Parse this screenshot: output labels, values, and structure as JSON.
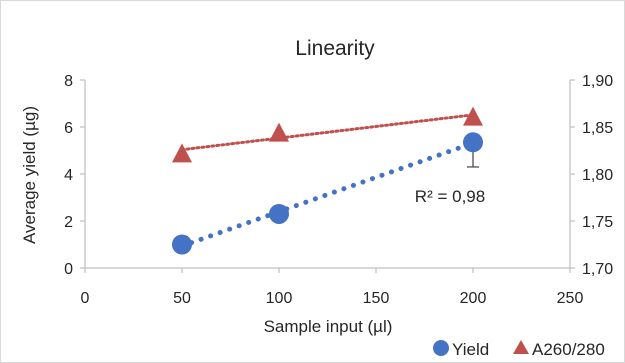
{
  "chart_data": {
    "type": "scatter",
    "title": "Linearity",
    "xlabel": "Sample input (µl)",
    "ylabel": "Average yield (µg)",
    "xlim": [
      0,
      250
    ],
    "x_ticks": [
      "0",
      "50",
      "100",
      "150",
      "200",
      "250"
    ],
    "ylim": [
      0,
      8
    ],
    "y_ticks": [
      "0",
      "2",
      "4",
      "6",
      "8"
    ],
    "y2lim": [
      1.7,
      1.9
    ],
    "y2_ticks": [
      "1,70",
      "1,75",
      "1,80",
      "1,85",
      "1,90"
    ],
    "grid": false,
    "legend_position": "bottom-right",
    "series": [
      {
        "name": "Yield",
        "axis": "left",
        "marker": "circle",
        "color": "#4472c4",
        "x": [
          50,
          100,
          200
        ],
        "y": [
          1.0,
          2.3,
          5.35
        ],
        "error_bar": {
          "x": 200,
          "y": 5.35,
          "low": 4.3,
          "high": 5.35
        },
        "trendline": {
          "style": "dotted",
          "x": [
            50,
            200
          ]
        }
      },
      {
        "name": "A260/280",
        "axis": "right",
        "marker": "triangle",
        "color": "#c0504d",
        "x": [
          50,
          100,
          200
        ],
        "y": [
          1.822,
          1.844,
          1.861
        ],
        "trendline": {
          "style": "dotted",
          "x": [
            50,
            200
          ]
        }
      }
    ],
    "annotations": [
      {
        "text": "R² = 0,98",
        "x": 170,
        "y": 2.8
      }
    ]
  }
}
